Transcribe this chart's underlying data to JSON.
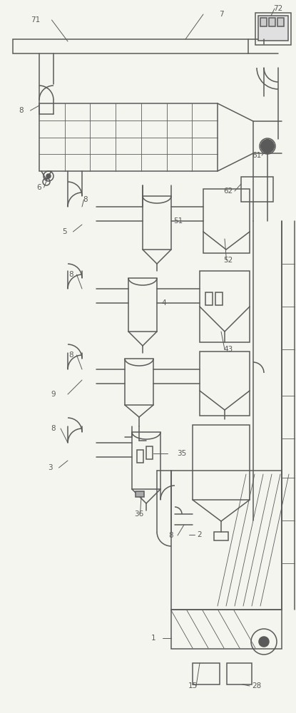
{
  "bg": "#f5f5f0",
  "lc": "#5a5a5a",
  "lw": 1.1,
  "lw_t": 0.6,
  "fs": 7.5,
  "fig_w": 4.15,
  "fig_h": 10.0,
  "dpi": 100
}
